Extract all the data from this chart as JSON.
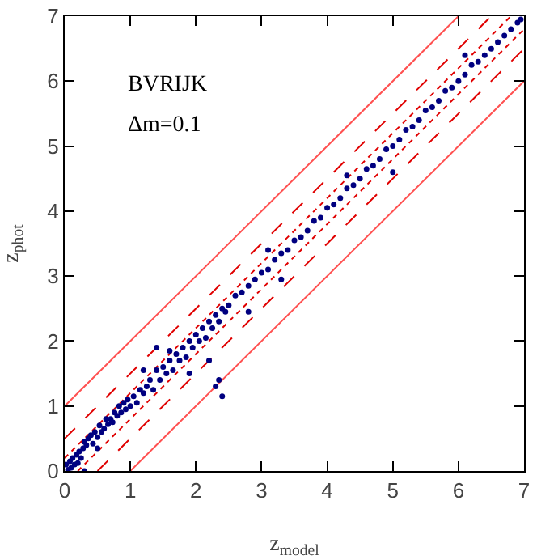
{
  "chart_data": {
    "type": "scatter",
    "xlabel": "z$_{model}$",
    "ylabel": "z$_{phot}$",
    "xlim": [
      0,
      7
    ],
    "ylim": [
      0,
      7
    ],
    "xticks": [
      0,
      1,
      2,
      3,
      4,
      5,
      6,
      7
    ],
    "yticks": [
      0,
      1,
      2,
      3,
      4,
      5,
      6,
      7
    ],
    "grid": false,
    "marker": "circle",
    "annotations": [
      "BVRIJK",
      "Δm=0.1"
    ],
    "series": [
      {
        "type": "line",
        "marker": "none",
        "color": "#ff5050",
        "line_style": "solid",
        "x": [
          0,
          6
        ],
        "values": [
          1,
          7
        ]
      },
      {
        "type": "line",
        "marker": "none",
        "color": "#ff5050",
        "line_style": "solid",
        "x": [
          1,
          7
        ],
        "values": [
          0,
          6
        ]
      },
      {
        "type": "line",
        "marker": "none",
        "color": "#e00000",
        "line_style": "dashed",
        "x": [
          0,
          6.5
        ],
        "values": [
          0.5,
          7
        ]
      },
      {
        "type": "line",
        "marker": "none",
        "color": "#e00000",
        "line_style": "dashed",
        "x": [
          0.5,
          7
        ],
        "values": [
          0,
          6.5
        ]
      },
      {
        "type": "line",
        "marker": "none",
        "color": "#e00000",
        "line_style": "dotted",
        "x": [
          0,
          6.8
        ],
        "values": [
          0.2,
          7
        ]
      },
      {
        "type": "line",
        "marker": "none",
        "color": "#e00000",
        "line_style": "dotted",
        "x": [
          0.2,
          7
        ],
        "values": [
          0,
          6.8
        ]
      },
      {
        "color": "#000080",
        "x": [
          0.02,
          0.05,
          0.08,
          0.1,
          0.12,
          0.15,
          0.18,
          0.2,
          0.22,
          0.25,
          0.28,
          0.3,
          0.33,
          0.36,
          0.4,
          0.43,
          0.46,
          0.5,
          0.53,
          0.56,
          0.6,
          0.63,
          0.66,
          0.7,
          0.73,
          0.76,
          0.8,
          0.83,
          0.86,
          0.9,
          0.93,
          0.96,
          1.0,
          1.05,
          1.1,
          1.15,
          1.2,
          1.25,
          1.3,
          1.35,
          1.4,
          1.45,
          1.5,
          1.55,
          1.6,
          1.65,
          1.7,
          1.75,
          1.8,
          1.85,
          1.9,
          1.95,
          2.0,
          2.05,
          2.1,
          2.15,
          2.2,
          2.25,
          2.3,
          2.35,
          2.4,
          2.45,
          2.5,
          2.6,
          2.7,
          2.8,
          2.9,
          3.0,
          3.1,
          3.2,
          3.3,
          3.4,
          3.5,
          3.6,
          3.7,
          3.8,
          3.9,
          4.0,
          4.1,
          4.2,
          4.3,
          4.4,
          4.5,
          4.6,
          4.7,
          4.8,
          4.9,
          5.0,
          5.1,
          5.2,
          5.3,
          5.4,
          5.5,
          5.6,
          5.7,
          5.8,
          5.9,
          6.0,
          6.1,
          6.2,
          6.3,
          6.4,
          6.5,
          6.6,
          6.7,
          6.8,
          6.9,
          6.95,
          2.3,
          2.4,
          1.4,
          1.6,
          2.35,
          1.9,
          2.2,
          3.3,
          3.1,
          5.0,
          4.3,
          6.1,
          0.3,
          0.5,
          1.2,
          2.8
        ],
        "values": [
          0.1,
          0.02,
          0.15,
          0.05,
          0.2,
          0.1,
          0.25,
          0.12,
          0.3,
          0.2,
          0.35,
          0.45,
          0.4,
          0.5,
          0.55,
          0.42,
          0.6,
          0.52,
          0.7,
          0.6,
          0.65,
          0.8,
          0.72,
          0.8,
          0.75,
          0.9,
          0.85,
          1.0,
          0.9,
          1.05,
          0.95,
          1.1,
          1.0,
          1.15,
          1.05,
          1.25,
          1.2,
          1.3,
          1.4,
          1.25,
          1.55,
          1.4,
          1.6,
          1.5,
          1.7,
          1.55,
          1.8,
          1.7,
          1.9,
          1.75,
          2.0,
          1.9,
          2.1,
          2.0,
          2.2,
          2.05,
          2.3,
          2.2,
          2.4,
          2.3,
          2.5,
          2.45,
          2.55,
          2.7,
          2.75,
          2.85,
          2.95,
          3.05,
          3.1,
          3.25,
          3.35,
          3.4,
          3.55,
          3.6,
          3.7,
          3.85,
          3.9,
          4.05,
          4.1,
          4.2,
          4.35,
          4.4,
          4.5,
          4.65,
          4.7,
          4.8,
          4.95,
          5.0,
          5.1,
          5.25,
          5.3,
          5.4,
          5.55,
          5.6,
          5.7,
          5.85,
          5.9,
          6.0,
          6.1,
          6.25,
          6.3,
          6.4,
          6.5,
          6.6,
          6.7,
          6.8,
          6.9,
          6.95,
          1.3,
          1.15,
          1.9,
          1.85,
          1.4,
          1.5,
          1.7,
          2.95,
          3.4,
          4.6,
          4.55,
          6.4,
          0.0,
          0.35,
          1.55,
          2.45
        ]
      }
    ]
  }
}
